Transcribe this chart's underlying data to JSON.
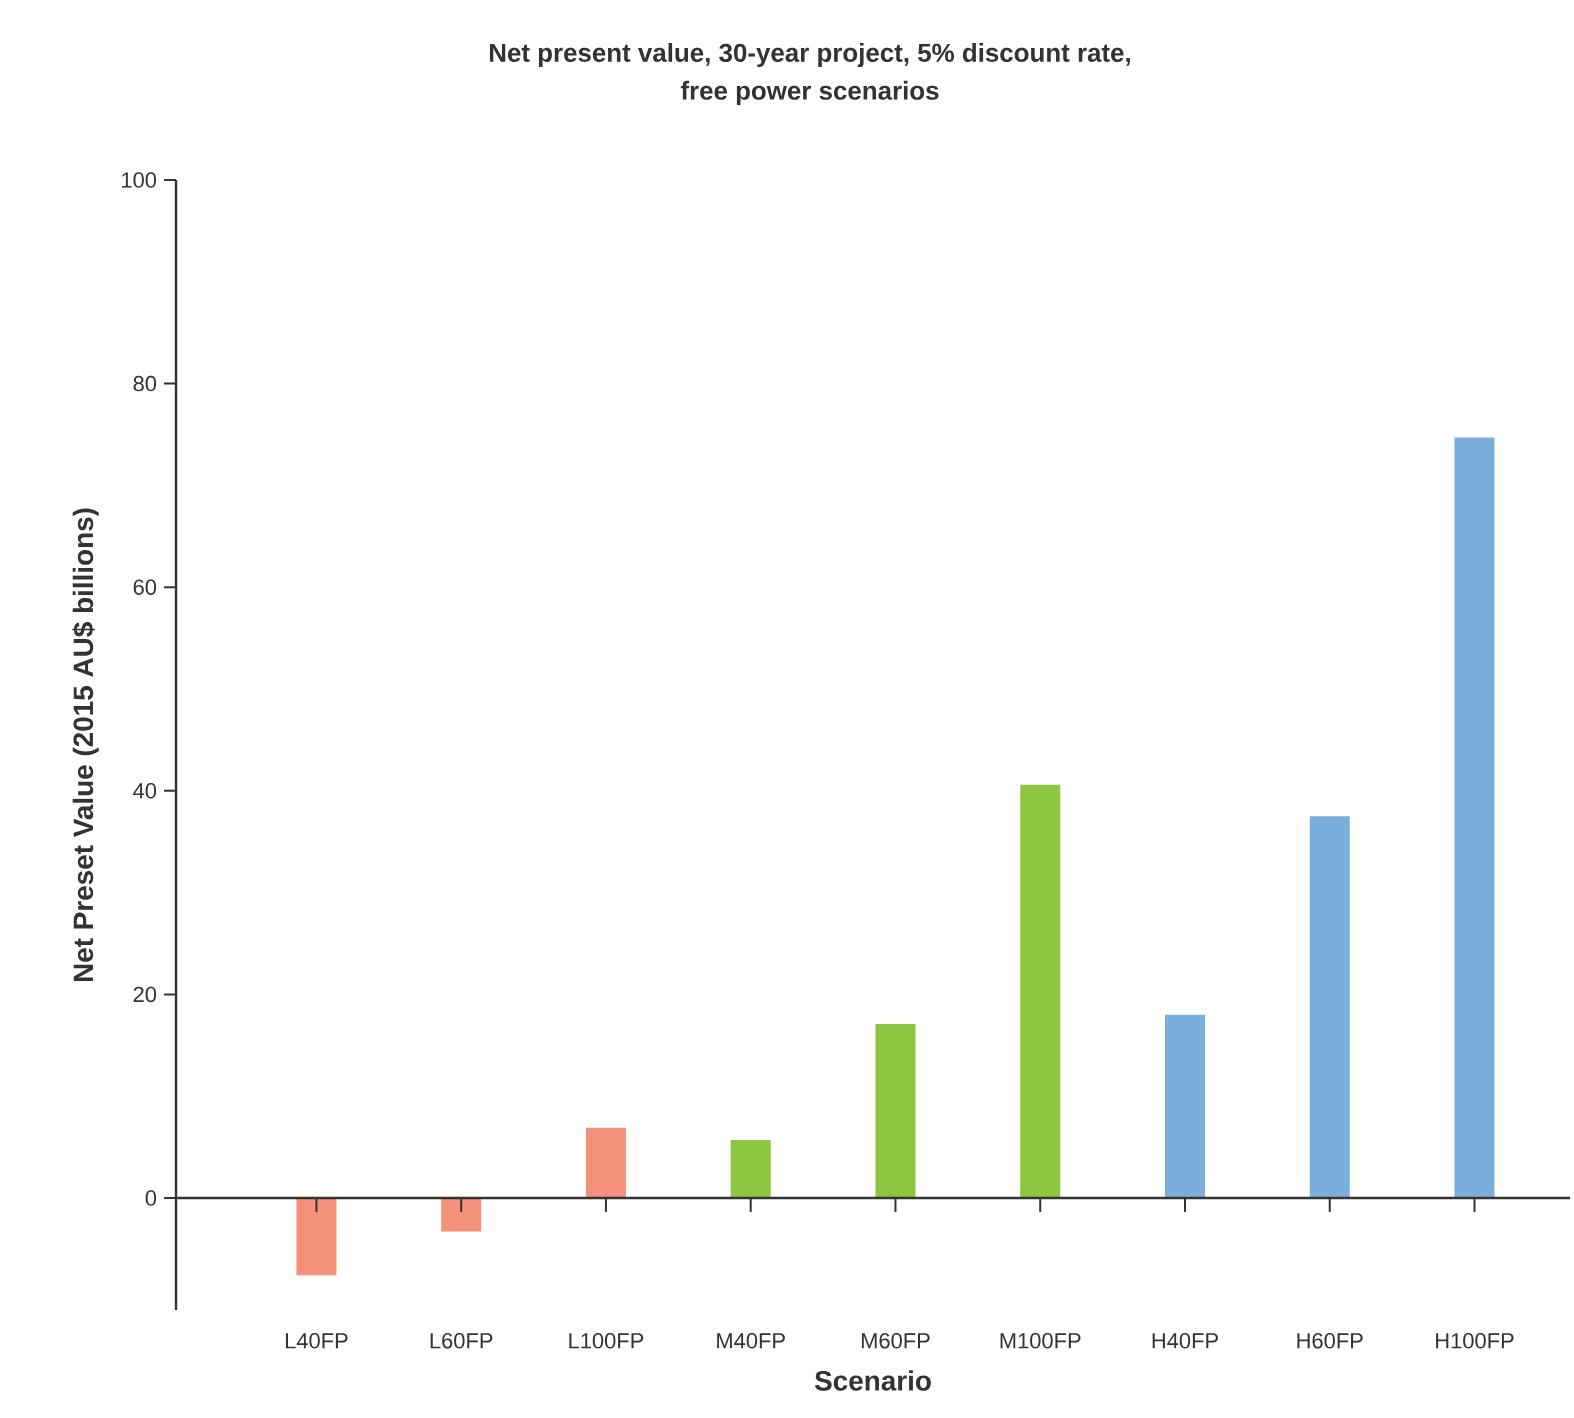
{
  "chart_data": {
    "type": "bar",
    "title": "Net present value, 30-year project, 5% discount rate,\nfree power scenarios",
    "xlabel": "Scenario",
    "ylabel": "Net Preset Value (2015 AU$ billions)",
    "categories": [
      "L40FP",
      "L60FP",
      "L100FP",
      "M40FP",
      "M60FP",
      "M100FP",
      "H40FP",
      "H60FP",
      "H100FP"
    ],
    "values": [
      -7.6,
      -3.3,
      6.9,
      5.7,
      17.1,
      40.6,
      18.0,
      37.5,
      74.7
    ],
    "colors": [
      "#f4917b",
      "#f4917b",
      "#f4917b",
      "#8dc63f",
      "#8dc63f",
      "#8dc63f",
      "#7aafdc",
      "#7aafdc",
      "#7aafdc"
    ],
    "ylim": [
      -11,
      100
    ],
    "yticks": [
      0,
      20,
      40,
      60,
      80,
      100
    ]
  }
}
